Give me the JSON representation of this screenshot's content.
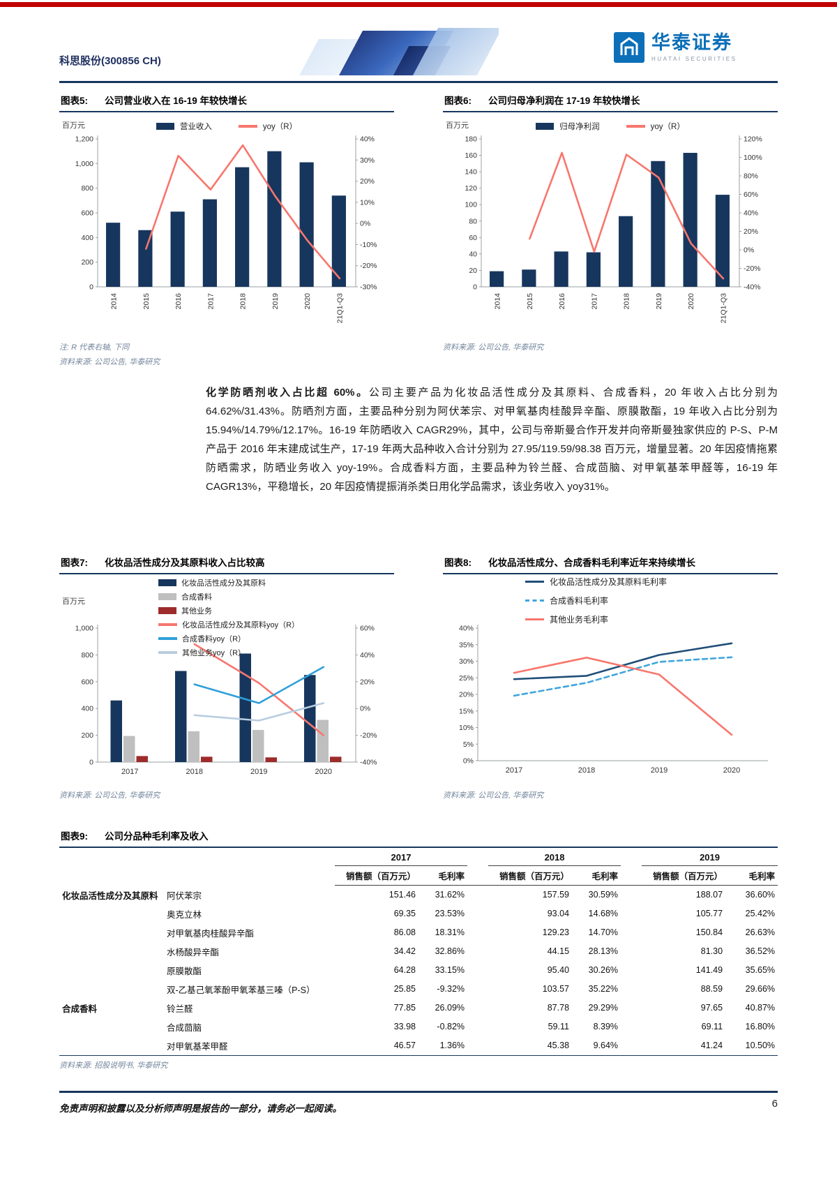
{
  "header": {
    "stock": "科思股份(300856 CH)",
    "brand": {
      "name_cn": "华泰证券",
      "name_en": "HUATAI SECURITIES"
    }
  },
  "paragraph": {
    "lead": "化学防晒剂收入占比超 60%。",
    "body": "公司主要产品为化妆品活性成分及其原料、合成香料，20 年收入占比分别为 64.62%/31.43%。防晒剂方面，主要品种分别为阿伏苯宗、对甲氧基肉桂酸异辛酯、原膜散酯，19 年收入占比分别为 15.94%/14.79%/12.17%。16-19 年防晒收入 CAGR29%，其中，公司与帝斯曼合作开发并向帝斯曼独家供应的 P-S、P-M 产品于 2016 年末建成试生产，17-19 年两大品种收入合计分别为 27.95/119.59/98.38 百万元，增量显著。20 年因疫情拖累防晒需求，防晒业务收入 yoy-19%。合成香料方面，主要品种为铃兰醛、合成茴脑、对甲氧基苯甲醛等，16-19 年 CAGR13%，平稳增长，20 年因疫情提振消杀类日用化学品需求，该业务收入 yoy31%。"
  },
  "footer": {
    "disclaimer": "免责声明和披露以及分析师声明是报告的一部分，请务必一起阅读。",
    "page_number": "6"
  },
  "chart_data": [
    {
      "fig_label": "图表5:",
      "title": "公司营业收入在 16-19 年较快增长",
      "type": "bar+line",
      "unit_label": "百万元",
      "categories": [
        "2014",
        "2015",
        "2016",
        "2017",
        "2018",
        "2019",
        "2020",
        "21Q1-Q3"
      ],
      "bar_series": [
        {
          "name": "营业收入",
          "color": "#17365D",
          "values": [
            520,
            460,
            610,
            710,
            970,
            1100,
            1010,
            740
          ]
        }
      ],
      "line_series": [
        {
          "name": "yoy（R）",
          "color": "#F8766D",
          "axis": "right",
          "values": [
            null,
            -12,
            32,
            16,
            37,
            13,
            -8,
            -26
          ]
        }
      ],
      "left_axis": {
        "min": 0,
        "max": 1200,
        "step": 200
      },
      "right_axis": {
        "min": -30,
        "max": 40,
        "step": 10,
        "percent": true
      },
      "note": "注: R 代表右轴, 下同",
      "source": "资料来源: 公司公告, 华泰研究"
    },
    {
      "fig_label": "图表6:",
      "title": "公司归母净利润在 17-19 年较快增长",
      "type": "bar+line",
      "unit_label": "百万元",
      "categories": [
        "2014",
        "2015",
        "2016",
        "2017",
        "2018",
        "2019",
        "2020",
        "21Q1-Q3"
      ],
      "bar_series": [
        {
          "name": "归母净利润",
          "color": "#17365D",
          "values": [
            19,
            21,
            43,
            42,
            86,
            153,
            163,
            112
          ]
        }
      ],
      "line_series": [
        {
          "name": "yoy（R）",
          "color": "#F8766D",
          "axis": "right",
          "values": [
            null,
            12,
            105,
            -2,
            103,
            78,
            7,
            -31
          ]
        }
      ],
      "left_axis": {
        "min": 0,
        "max": 180,
        "step": 20
      },
      "right_axis": {
        "min": -40,
        "max": 120,
        "step": 20,
        "percent": true
      },
      "source": "资料来源: 公司公告, 华泰研究"
    },
    {
      "fig_label": "图表7:",
      "title": "化妆品活性成分及其原料收入占比较高",
      "type": "bar+line",
      "unit_label": "百万元",
      "categories": [
        "2017",
        "2018",
        "2019",
        "2020"
      ],
      "bar_series": [
        {
          "name": "化妆品活性成分及其原料",
          "color": "#17365D",
          "values": [
            460,
            680,
            810,
            650
          ]
        },
        {
          "name": "合成香料",
          "color": "#BFBFBF",
          "values": [
            195,
            230,
            240,
            315
          ]
        },
        {
          "name": "其他业务",
          "color": "#9E2B2B",
          "values": [
            45,
            40,
            35,
            40
          ]
        }
      ],
      "line_series": [
        {
          "name": "化妆品活性成分及其原料yoy（R）",
          "color": "#F8766D",
          "axis": "right",
          "values": [
            null,
            48,
            19,
            -20
          ]
        },
        {
          "name": "合成香料yoy（R）",
          "color": "#2E9FD9",
          "axis": "right",
          "values": [
            null,
            18,
            4,
            31
          ]
        },
        {
          "name": "其他业务yoy（R）",
          "color": "#B9CDE0",
          "axis": "right",
          "values": [
            null,
            -5,
            -9,
            4
          ]
        }
      ],
      "left_axis": {
        "min": 0,
        "max": 1000,
        "step": 200
      },
      "right_axis": {
        "min": -40,
        "max": 60,
        "step": 20,
        "percent": true
      },
      "source": "资料来源: 公司公告, 华泰研究"
    },
    {
      "fig_label": "图表8:",
      "title": "化妆品活性成分、合成香料毛利率近年来持续增长",
      "type": "line",
      "categories": [
        "2017",
        "2018",
        "2019",
        "2020"
      ],
      "line_series": [
        {
          "name": "化妆品活性成分及其原料毛利率",
          "color": "#1F4E79",
          "axis": "left",
          "values": [
            24.6,
            25.6,
            31.9,
            35.4
          ]
        },
        {
          "name": "合成香料毛利率",
          "color": "#41A5DC",
          "axis": "left",
          "dash": true,
          "values": [
            19.6,
            23.5,
            29.8,
            31.2
          ]
        },
        {
          "name": "其他业务毛利率",
          "color": "#F8766D",
          "axis": "left",
          "values": [
            26.5,
            31.1,
            26.0,
            7.8
          ]
        }
      ],
      "left_axis": {
        "min": 0,
        "max": 40,
        "step": 5,
        "percent": true
      },
      "source": "资料来源: 公司公告, 华泰研究"
    },
    {
      "fig_label": "图表9:",
      "title": "公司分品种毛利率及收入",
      "type": "table",
      "years": [
        "2017",
        "2018",
        "2019"
      ],
      "sub_headers": [
        "销售额（百万元）",
        "毛利率"
      ],
      "groups": [
        {
          "name": "化妆品活性成分及其原料",
          "rows": [
            {
              "product": "阿伏苯宗",
              "values": [
                "151.46",
                "31.62%",
                "157.59",
                "30.59%",
                "188.07",
                "36.60%"
              ]
            },
            {
              "product": "奥克立林",
              "values": [
                "69.35",
                "23.53%",
                "93.04",
                "14.68%",
                "105.77",
                "25.42%"
              ]
            },
            {
              "product": "对甲氧基肉桂酸异辛酯",
              "values": [
                "86.08",
                "18.31%",
                "129.23",
                "14.70%",
                "150.84",
                "26.63%"
              ]
            },
            {
              "product": "水杨酸异辛酯",
              "values": [
                "34.42",
                "32.86%",
                "44.15",
                "28.13%",
                "81.30",
                "36.52%"
              ]
            },
            {
              "product": "原膜散酯",
              "values": [
                "64.28",
                "33.15%",
                "95.40",
                "30.26%",
                "141.49",
                "35.65%"
              ]
            },
            {
              "product": "双-乙基己氧苯酚甲氧苯基三嗪（P-S）",
              "values": [
                "25.85",
                "-9.32%",
                "103.57",
                "35.22%",
                "88.59",
                "29.66%"
              ]
            }
          ]
        },
        {
          "name": "合成香料",
          "rows": [
            {
              "product": "铃兰醛",
              "values": [
                "77.85",
                "26.09%",
                "87.78",
                "29.29%",
                "97.65",
                "40.87%"
              ]
            },
            {
              "product": "合成茴脑",
              "values": [
                "33.98",
                "-0.82%",
                "59.11",
                "8.39%",
                "69.11",
                "16.80%"
              ]
            },
            {
              "product": "对甲氧基苯甲醛",
              "values": [
                "46.57",
                "1.36%",
                "45.38",
                "9.64%",
                "41.24",
                "10.50%"
              ]
            }
          ]
        }
      ],
      "source": "资料来源: 招股说明书, 华泰研究"
    }
  ]
}
